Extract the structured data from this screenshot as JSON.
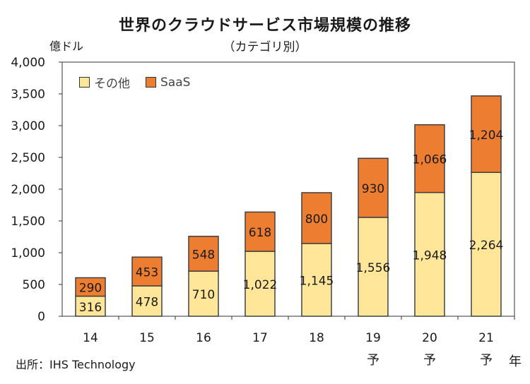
{
  "chart_data": {
    "type": "bar",
    "stacked": true,
    "title": "世界のクラウドサービス市場規模の推移",
    "subtitle": "（カテゴリ別）",
    "ylabel": "億ドル",
    "xlabel_unit": "年",
    "categories": [
      "14",
      "15",
      "16",
      "17",
      "18",
      "19",
      "20",
      "21"
    ],
    "category_notes": [
      "",
      "",
      "",
      "",
      "",
      "予",
      "予",
      "予"
    ],
    "ylim": [
      0,
      4000
    ],
    "yticks": [
      0,
      500,
      1000,
      1500,
      2000,
      2500,
      3000,
      3500,
      4000
    ],
    "ytick_labels": [
      "0",
      "500",
      "1,000",
      "1,500",
      "2,000",
      "2,500",
      "3,000",
      "3,500",
      "4,000"
    ],
    "series": [
      {
        "name": "その他",
        "color": "#FFE699",
        "values": [
          316,
          478,
          710,
          1022,
          1145,
          1556,
          1948,
          2264
        ],
        "labels": [
          "316",
          "478",
          "710",
          "1,022",
          "1,145",
          "1,556",
          "1,948",
          "2,264"
        ]
      },
      {
        "name": "SaaS",
        "color": "#ED7D31",
        "values": [
          290,
          453,
          548,
          618,
          800,
          930,
          1066,
          1204
        ],
        "labels": [
          "290",
          "453",
          "548",
          "618",
          "800",
          "930",
          "1,066",
          "1,204"
        ]
      }
    ],
    "grid": false,
    "legend_position": "top-left",
    "source": "出所：IHS Technology"
  }
}
